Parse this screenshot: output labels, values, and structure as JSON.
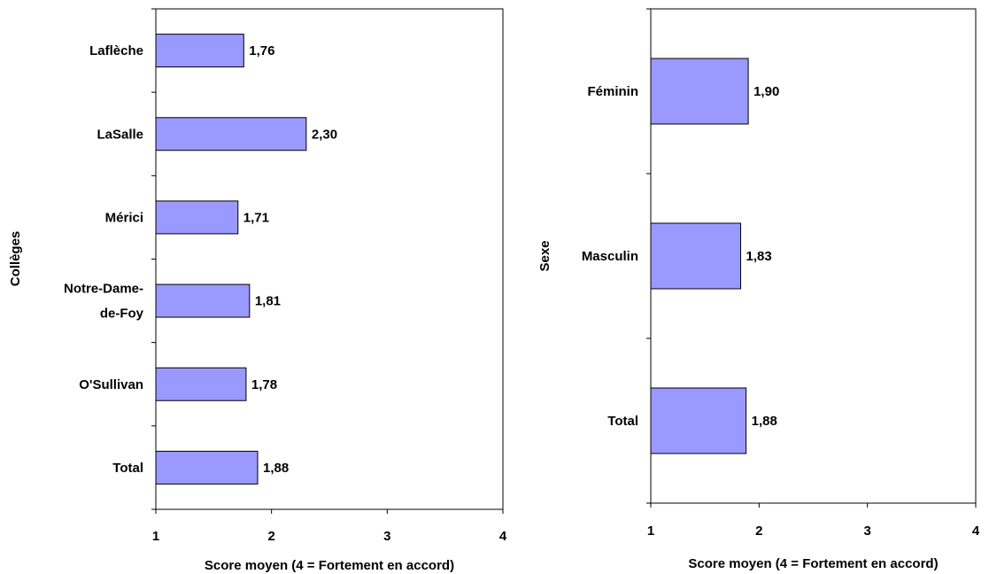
{
  "colors": {
    "bar_fill": "#9999ff",
    "bar_stroke": "#000000",
    "axis": "#000000"
  },
  "chart_data": [
    {
      "type": "bar",
      "orientation": "horizontal",
      "categories": [
        "Laflèche",
        "LaSalle",
        "Mérici",
        "Notre-Dame-de-Foy",
        "O'Sullivan",
        "Total"
      ],
      "category_lines": [
        [
          "Laflèche"
        ],
        [
          "LaSalle"
        ],
        [
          "Mérici"
        ],
        [
          "Notre-Dame-",
          "de-Foy"
        ],
        [
          "O'Sullivan"
        ],
        [
          "Total"
        ]
      ],
      "values": [
        1.76,
        2.3,
        1.71,
        1.81,
        1.78,
        1.88
      ],
      "value_labels": [
        "1,76",
        "2,30",
        "1,71",
        "1,81",
        "1,78",
        "1,88"
      ],
      "xlabel": "Score moyen (4 = Fortement en accord)",
      "ylabel": "Collèges",
      "xlim": [
        1,
        4
      ],
      "xticks": [
        1,
        2,
        3,
        4
      ],
      "xtick_labels": [
        "1",
        "2",
        "3",
        "4"
      ],
      "grid": false,
      "legend": "none"
    },
    {
      "type": "bar",
      "orientation": "horizontal",
      "categories": [
        "Féminin",
        "Masculin",
        "Total"
      ],
      "category_lines": [
        [
          "Féminin"
        ],
        [
          "Masculin"
        ],
        [
          "Total"
        ]
      ],
      "values": [
        1.9,
        1.83,
        1.88
      ],
      "value_labels": [
        "1,90",
        "1,83",
        "1,88"
      ],
      "xlabel": "Score moyen (4 = Fortement en accord)",
      "ylabel": "Sexe",
      "xlim": [
        1,
        4
      ],
      "xticks": [
        1,
        2,
        3,
        4
      ],
      "xtick_labels": [
        "1",
        "2",
        "3",
        "4"
      ],
      "grid": false,
      "legend": "none"
    }
  ]
}
